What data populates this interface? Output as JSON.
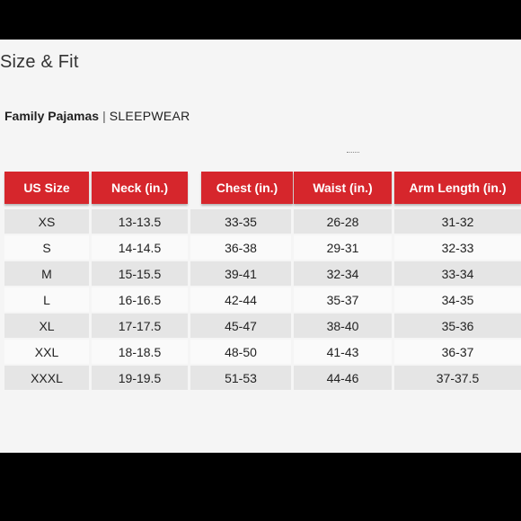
{
  "page": {
    "title": "Size & Fit",
    "brand": "Family Pajamas",
    "separator": "|",
    "category": "SLEEPWEAR"
  },
  "table": {
    "headers": [
      "US Size",
      "Neck (in.)",
      "Chest (in.)",
      "Waist (in.)",
      "Arm Length (in.)"
    ],
    "rows": [
      [
        "XS",
        "13-13.5",
        "33-35",
        "26-28",
        "31-32"
      ],
      [
        "S",
        "14-14.5",
        "36-38",
        "29-31",
        "32-33"
      ],
      [
        "M",
        "15-15.5",
        "39-41",
        "32-34",
        "33-34"
      ],
      [
        "L",
        "16-16.5",
        "42-44",
        "35-37",
        "34-35"
      ],
      [
        "XL",
        "17-17.5",
        "45-47",
        "38-40",
        "35-36"
      ],
      [
        "XXL",
        "18-18.5",
        "48-50",
        "41-43",
        "36-37"
      ],
      [
        "XXXL",
        "19-19.5",
        "51-53",
        "44-46",
        "37-37.5"
      ]
    ]
  },
  "colors": {
    "header_red": "#d6262c",
    "row_shade": "#e5e5e5",
    "row_plain": "#fafafa"
  }
}
